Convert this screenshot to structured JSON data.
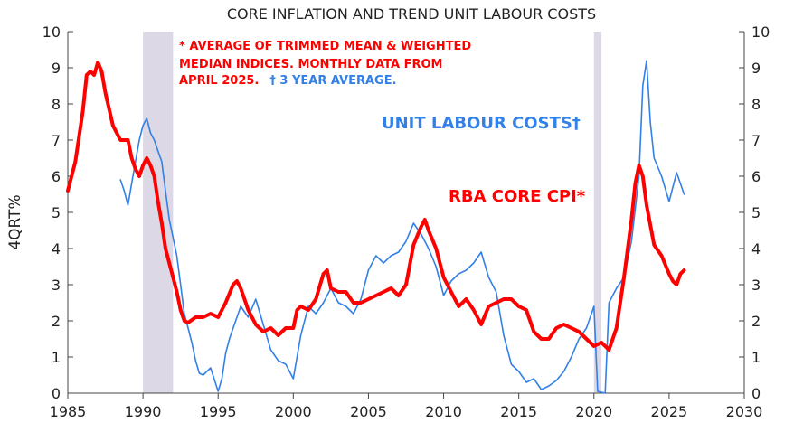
{
  "chart_data": {
    "type": "line",
    "title": "CORE INFLATION AND TREND UNIT LABOUR COSTS",
    "ylabel": "4QRT%",
    "xlim": [
      1985,
      2030
    ],
    "ylim": [
      0,
      10
    ],
    "x_ticks": [
      "1985",
      "1990",
      "1995",
      "2000",
      "2005",
      "2010",
      "2015",
      "2020",
      "2025",
      "2030"
    ],
    "y_ticks": [
      "0",
      "1",
      "2",
      "3",
      "4",
      "5",
      "6",
      "7",
      "8",
      "9",
      "10"
    ],
    "y_ticks_right": [
      "0",
      "1",
      "2",
      "3",
      "4",
      "5",
      "6",
      "7",
      "8",
      "9",
      "10"
    ],
    "annotations": [
      "* AVERAGE  OF TRIMMED MEAN & WEIGHTED",
      "MEDIAN INDICES.  MONTHLY DATA FROM",
      "APRIL 2025.",
      "† 3 YEAR AVERAGE."
    ],
    "shaded_periods": [
      [
        1990.0,
        1992.0
      ],
      [
        2020.0,
        2020.5
      ]
    ],
    "series": [
      {
        "name": "RBA CORE CPI*",
        "color": "#ff0000",
        "points": [
          [
            1985.0,
            5.6
          ],
          [
            1985.5,
            6.4
          ],
          [
            1986.0,
            7.8
          ],
          [
            1986.25,
            8.8
          ],
          [
            1986.5,
            8.9
          ],
          [
            1986.75,
            8.8
          ],
          [
            1987.0,
            9.15
          ],
          [
            1987.25,
            8.9
          ],
          [
            1987.5,
            8.3
          ],
          [
            1988.0,
            7.4
          ],
          [
            1988.5,
            7.0
          ],
          [
            1989.0,
            7.0
          ],
          [
            1989.25,
            6.5
          ],
          [
            1989.5,
            6.2
          ],
          [
            1989.75,
            6.0
          ],
          [
            1990.0,
            6.3
          ],
          [
            1990.25,
            6.5
          ],
          [
            1990.5,
            6.3
          ],
          [
            1990.75,
            6.0
          ],
          [
            1991.0,
            5.3
          ],
          [
            1991.25,
            4.7
          ],
          [
            1991.5,
            4.0
          ],
          [
            1991.75,
            3.6
          ],
          [
            1992.0,
            3.2
          ],
          [
            1992.25,
            2.8
          ],
          [
            1992.5,
            2.3
          ],
          [
            1992.75,
            2.0
          ],
          [
            1993.0,
            1.95
          ],
          [
            1993.5,
            2.1
          ],
          [
            1994.0,
            2.1
          ],
          [
            1994.5,
            2.2
          ],
          [
            1995.0,
            2.1
          ],
          [
            1995.5,
            2.5
          ],
          [
            1996.0,
            3.0
          ],
          [
            1996.25,
            3.1
          ],
          [
            1996.5,
            2.9
          ],
          [
            1997.0,
            2.3
          ],
          [
            1997.5,
            1.9
          ],
          [
            1998.0,
            1.7
          ],
          [
            1998.5,
            1.8
          ],
          [
            1999.0,
            1.6
          ],
          [
            1999.5,
            1.8
          ],
          [
            2000.0,
            1.8
          ],
          [
            2000.25,
            2.3
          ],
          [
            2000.5,
            2.4
          ],
          [
            2001.0,
            2.3
          ],
          [
            2001.5,
            2.6
          ],
          [
            2002.0,
            3.3
          ],
          [
            2002.25,
            3.4
          ],
          [
            2002.5,
            2.9
          ],
          [
            2003.0,
            2.8
          ],
          [
            2003.5,
            2.8
          ],
          [
            2004.0,
            2.5
          ],
          [
            2004.5,
            2.5
          ],
          [
            2005.0,
            2.6
          ],
          [
            2005.5,
            2.7
          ],
          [
            2006.0,
            2.8
          ],
          [
            2006.5,
            2.9
          ],
          [
            2007.0,
            2.7
          ],
          [
            2007.5,
            3.0
          ],
          [
            2008.0,
            4.1
          ],
          [
            2008.5,
            4.6
          ],
          [
            2008.75,
            4.8
          ],
          [
            2009.0,
            4.5
          ],
          [
            2009.5,
            4.0
          ],
          [
            2010.0,
            3.2
          ],
          [
            2010.5,
            2.8
          ],
          [
            2011.0,
            2.4
          ],
          [
            2011.5,
            2.6
          ],
          [
            2012.0,
            2.3
          ],
          [
            2012.5,
            1.9
          ],
          [
            2013.0,
            2.4
          ],
          [
            2013.5,
            2.5
          ],
          [
            2014.0,
            2.6
          ],
          [
            2014.5,
            2.6
          ],
          [
            2015.0,
            2.4
          ],
          [
            2015.5,
            2.3
          ],
          [
            2016.0,
            1.7
          ],
          [
            2016.5,
            1.5
          ],
          [
            2017.0,
            1.5
          ],
          [
            2017.5,
            1.8
          ],
          [
            2018.0,
            1.9
          ],
          [
            2018.5,
            1.8
          ],
          [
            2019.0,
            1.7
          ],
          [
            2019.5,
            1.5
          ],
          [
            2020.0,
            1.3
          ],
          [
            2020.5,
            1.4
          ],
          [
            2021.0,
            1.2
          ],
          [
            2021.5,
            1.8
          ],
          [
            2022.0,
            3.2
          ],
          [
            2022.5,
            4.8
          ],
          [
            2022.75,
            5.8
          ],
          [
            2023.0,
            6.3
          ],
          [
            2023.25,
            6.0
          ],
          [
            2023.5,
            5.2
          ],
          [
            2024.0,
            4.1
          ],
          [
            2024.5,
            3.8
          ],
          [
            2025.0,
            3.3
          ],
          [
            2025.25,
            3.1
          ],
          [
            2025.5,
            3.0
          ],
          [
            2025.75,
            3.3
          ],
          [
            2026.0,
            3.4
          ]
        ]
      },
      {
        "name": "UNIT LABOUR COSTS†",
        "color": "#3380e6",
        "points": [
          [
            1988.5,
            5.9
          ],
          [
            1988.75,
            5.6
          ],
          [
            1989.0,
            5.2
          ],
          [
            1989.25,
            5.8
          ],
          [
            1989.5,
            6.4
          ],
          [
            1989.75,
            7.0
          ],
          [
            1990.0,
            7.4
          ],
          [
            1990.25,
            7.6
          ],
          [
            1990.5,
            7.2
          ],
          [
            1990.75,
            7.0
          ],
          [
            1991.0,
            6.7
          ],
          [
            1991.25,
            6.4
          ],
          [
            1991.5,
            5.6
          ],
          [
            1991.75,
            4.8
          ],
          [
            1992.0,
            4.3
          ],
          [
            1992.25,
            3.8
          ],
          [
            1992.5,
            3.0
          ],
          [
            1992.75,
            2.2
          ],
          [
            1993.0,
            1.8
          ],
          [
            1993.25,
            1.4
          ],
          [
            1993.5,
            0.9
          ],
          [
            1993.75,
            0.55
          ],
          [
            1994.0,
            0.5
          ],
          [
            1994.5,
            0.7
          ],
          [
            1995.0,
            0.05
          ],
          [
            1995.25,
            0.4
          ],
          [
            1995.5,
            1.1
          ],
          [
            1995.75,
            1.5
          ],
          [
            1996.0,
            1.8
          ],
          [
            1996.5,
            2.4
          ],
          [
            1997.0,
            2.1
          ],
          [
            1997.5,
            2.6
          ],
          [
            1998.0,
            1.9
          ],
          [
            1998.5,
            1.2
          ],
          [
            1999.0,
            0.9
          ],
          [
            1999.5,
            0.8
          ],
          [
            2000.0,
            0.4
          ],
          [
            2000.5,
            1.6
          ],
          [
            2001.0,
            2.4
          ],
          [
            2001.5,
            2.2
          ],
          [
            2002.0,
            2.5
          ],
          [
            2002.5,
            2.9
          ],
          [
            2003.0,
            2.5
          ],
          [
            2003.5,
            2.4
          ],
          [
            2004.0,
            2.2
          ],
          [
            2004.5,
            2.6
          ],
          [
            2005.0,
            3.4
          ],
          [
            2005.5,
            3.8
          ],
          [
            2006.0,
            3.6
          ],
          [
            2006.5,
            3.8
          ],
          [
            2007.0,
            3.9
          ],
          [
            2007.5,
            4.2
          ],
          [
            2008.0,
            4.7
          ],
          [
            2008.5,
            4.4
          ],
          [
            2009.0,
            4.0
          ],
          [
            2009.5,
            3.5
          ],
          [
            2010.0,
            2.7
          ],
          [
            2010.5,
            3.1
          ],
          [
            2011.0,
            3.3
          ],
          [
            2011.5,
            3.4
          ],
          [
            2012.0,
            3.6
          ],
          [
            2012.5,
            3.9
          ],
          [
            2013.0,
            3.2
          ],
          [
            2013.5,
            2.8
          ],
          [
            2014.0,
            1.6
          ],
          [
            2014.5,
            0.8
          ],
          [
            2015.0,
            0.6
          ],
          [
            2015.5,
            0.3
          ],
          [
            2016.0,
            0.4
          ],
          [
            2016.5,
            0.1
          ],
          [
            2017.0,
            0.2
          ],
          [
            2017.5,
            0.35
          ],
          [
            2018.0,
            0.6
          ],
          [
            2018.5,
            1.0
          ],
          [
            2019.0,
            1.5
          ],
          [
            2019.5,
            1.8
          ],
          [
            2020.0,
            2.4
          ],
          [
            2020.25,
            0.05
          ],
          [
            2020.75,
            0.0
          ],
          [
            2021.0,
            2.5
          ],
          [
            2021.5,
            2.9
          ],
          [
            2022.0,
            3.2
          ],
          [
            2022.5,
            4.2
          ],
          [
            2023.0,
            6.0
          ],
          [
            2023.25,
            8.5
          ],
          [
            2023.5,
            9.2
          ],
          [
            2023.75,
            7.5
          ],
          [
            2024.0,
            6.5
          ],
          [
            2024.5,
            6.0
          ],
          [
            2025.0,
            5.3
          ],
          [
            2025.5,
            6.1
          ],
          [
            2025.75,
            5.8
          ],
          [
            2026.0,
            5.5
          ]
        ]
      }
    ]
  }
}
